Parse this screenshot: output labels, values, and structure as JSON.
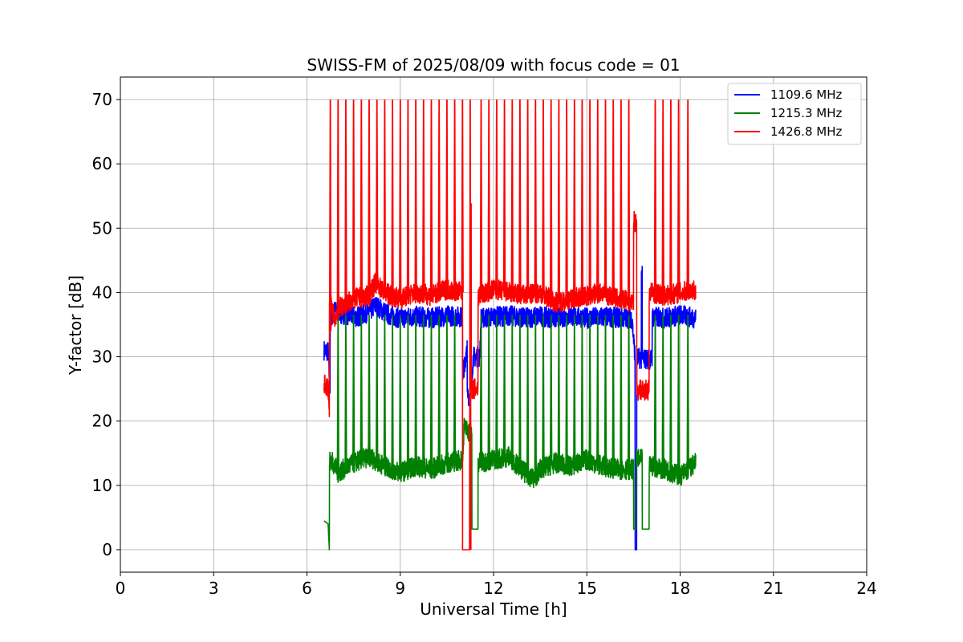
{
  "chart_data": {
    "type": "line",
    "title": "SWISS-FM of 2025/08/09 with focus code = 01",
    "xlabel": "Universal Time [h]",
    "ylabel": "Y-factor [dB]",
    "xlim": [
      0,
      24
    ],
    "ylim": [
      -3.5,
      73.5
    ],
    "x_ticks": [
      0,
      3,
      6,
      9,
      12,
      15,
      18,
      21,
      24
    ],
    "y_ticks": [
      0,
      10,
      20,
      30,
      40,
      50,
      60,
      70
    ],
    "grid": true,
    "legend_position": "top-right",
    "series": [
      {
        "name": "1109.6 MHz",
        "color": "#0000ff",
        "points": [
          [
            6.55,
            31.0
          ],
          [
            6.68,
            30.8
          ],
          [
            6.74,
            25.0
          ],
          [
            6.78,
            36.0
          ],
          [
            6.85,
            37.2
          ],
          [
            7.2,
            36.6
          ],
          [
            7.6,
            36.2
          ],
          [
            8.0,
            37.0
          ],
          [
            8.2,
            38.0
          ],
          [
            8.6,
            36.6
          ],
          [
            9.0,
            36.0
          ],
          [
            9.5,
            36.3
          ],
          [
            10.0,
            36.0
          ],
          [
            10.5,
            36.4
          ],
          [
            11.0,
            36.2
          ],
          [
            11.05,
            28.0
          ],
          [
            11.15,
            31.0
          ],
          [
            11.25,
            24.0
          ],
          [
            11.35,
            30.0
          ],
          [
            11.55,
            30.0
          ],
          [
            11.6,
            36.0
          ],
          [
            12.0,
            36.2
          ],
          [
            12.5,
            36.4
          ],
          [
            13.0,
            36.0
          ],
          [
            13.5,
            36.3
          ],
          [
            14.0,
            36.0
          ],
          [
            14.5,
            36.4
          ],
          [
            15.0,
            36.0
          ],
          [
            15.5,
            36.2
          ],
          [
            16.0,
            36.1
          ],
          [
            16.45,
            36.0
          ],
          [
            16.55,
            30.0
          ],
          [
            16.6,
            0.0
          ],
          [
            16.65,
            29.8
          ],
          [
            16.75,
            29.7
          ],
          [
            16.78,
            42.5
          ],
          [
            16.82,
            29.7
          ],
          [
            17.1,
            29.6
          ],
          [
            17.15,
            36.2
          ],
          [
            17.5,
            36.0
          ],
          [
            18.0,
            36.5
          ],
          [
            18.5,
            36.0
          ]
        ]
      },
      {
        "name": "1215.3 MHz",
        "color": "#008000",
        "points": [
          [
            6.55,
            4.5
          ],
          [
            6.68,
            4.0
          ],
          [
            6.72,
            0.0
          ],
          [
            6.76,
            14.0
          ],
          [
            6.9,
            13.0
          ],
          [
            7.0,
            12.0
          ],
          [
            7.5,
            13.5
          ],
          [
            8.0,
            14.5
          ],
          [
            8.5,
            13.0
          ],
          [
            9.0,
            12.0
          ],
          [
            9.5,
            13.0
          ],
          [
            10.0,
            12.5
          ],
          [
            10.5,
            13.5
          ],
          [
            11.0,
            14.0
          ],
          [
            11.05,
            19.0
          ],
          [
            11.3,
            18.0
          ],
          [
            11.35,
            3.2
          ],
          [
            11.5,
            3.2
          ],
          [
            11.55,
            13.5
          ],
          [
            12.0,
            14.0
          ],
          [
            12.5,
            14.5
          ],
          [
            13.0,
            12.0
          ],
          [
            13.3,
            11.0
          ],
          [
            13.5,
            12.5
          ],
          [
            14.0,
            13.5
          ],
          [
            14.5,
            13.0
          ],
          [
            15.0,
            14.0
          ],
          [
            15.5,
            13.0
          ],
          [
            16.0,
            12.5
          ],
          [
            16.5,
            12.5
          ],
          [
            16.58,
            3.2
          ],
          [
            16.78,
            14.0
          ],
          [
            16.82,
            3.2
          ],
          [
            17.0,
            3.2
          ],
          [
            17.1,
            13.0
          ],
          [
            17.5,
            12.5
          ],
          [
            18.0,
            11.5
          ],
          [
            18.5,
            13.5
          ]
        ],
        "spikes": {
          "x": [
            7.0,
            7.25,
            7.5,
            7.75,
            8.0,
            8.25,
            8.5,
            8.75,
            9.0,
            9.25,
            9.5,
            9.75,
            10.0,
            10.25,
            10.5,
            10.75,
            11.6,
            11.85,
            12.1,
            12.35,
            12.6,
            12.85,
            13.1,
            13.35,
            13.6,
            13.85,
            14.1,
            14.35,
            14.6,
            14.85,
            15.1,
            15.35,
            15.6,
            15.85,
            16.1,
            16.35,
            17.2,
            17.45,
            17.7,
            17.95,
            18.25
          ],
          "peak": 36.5
        }
      },
      {
        "name": "1426.8 MHz",
        "color": "#ff0000",
        "points": [
          [
            6.55,
            25.7
          ],
          [
            6.68,
            25.3
          ],
          [
            6.72,
            22.0
          ],
          [
            6.76,
            38.0
          ],
          [
            6.9,
            36.0
          ],
          [
            7.0,
            37.5
          ],
          [
            7.5,
            39.0
          ],
          [
            8.0,
            39.5
          ],
          [
            8.2,
            41.5
          ],
          [
            8.5,
            40.0
          ],
          [
            9.0,
            39.0
          ],
          [
            9.5,
            40.0
          ],
          [
            10.0,
            39.5
          ],
          [
            10.5,
            40.5
          ],
          [
            11.0,
            40.0
          ],
          [
            11.02,
            0.0
          ],
          [
            11.25,
            0.0
          ],
          [
            11.28,
            54.0
          ],
          [
            11.32,
            25.0
          ],
          [
            11.5,
            25.0
          ],
          [
            11.55,
            39.5
          ],
          [
            12.0,
            40.5
          ],
          [
            12.5,
            40.0
          ],
          [
            13.0,
            39.5
          ],
          [
            13.5,
            40.0
          ],
          [
            14.0,
            38.5
          ],
          [
            14.5,
            39.0
          ],
          [
            15.0,
            39.5
          ],
          [
            15.5,
            40.0
          ],
          [
            16.0,
            39.0
          ],
          [
            16.5,
            38.5
          ],
          [
            16.6,
            51.0
          ],
          [
            16.65,
            24.8
          ],
          [
            17.0,
            24.8
          ],
          [
            17.1,
            40.0
          ],
          [
            17.5,
            39.5
          ],
          [
            18.0,
            40.0
          ],
          [
            18.5,
            40.5
          ]
        ],
        "spikes": {
          "x": [
            6.75,
            7.0,
            7.25,
            7.5,
            7.75,
            8.0,
            8.25,
            8.5,
            8.75,
            9.0,
            9.25,
            9.5,
            9.75,
            10.0,
            10.25,
            10.5,
            10.75,
            11.0,
            11.25,
            11.6,
            11.85,
            12.1,
            12.35,
            12.6,
            12.85,
            13.1,
            13.35,
            13.6,
            13.85,
            14.1,
            14.35,
            14.6,
            14.85,
            15.1,
            15.35,
            15.6,
            15.85,
            16.1,
            16.35,
            17.2,
            17.45,
            17.7,
            17.95,
            18.25
          ],
          "peak": 70.0
        }
      }
    ]
  }
}
